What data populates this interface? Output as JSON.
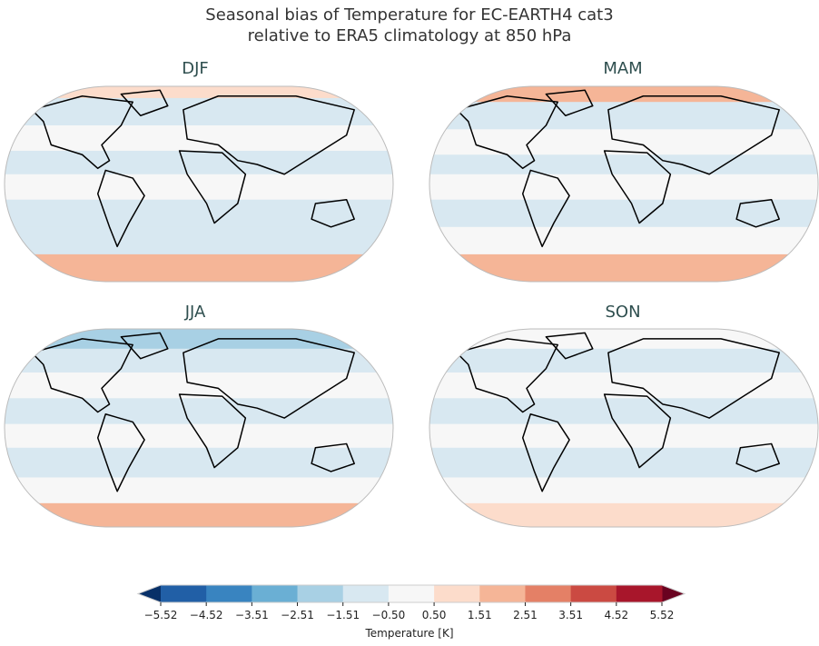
{
  "title": {
    "line1": "Seasonal bias of Temperature for EC-EARTH4 cat3",
    "line2": "relative to ERA5 climatology at 850 hPa"
  },
  "panels": [
    {
      "label": "DJF"
    },
    {
      "label": "MAM"
    },
    {
      "label": "JJA"
    },
    {
      "label": "SON"
    }
  ],
  "colorbar": {
    "label": "Temperature [K]",
    "ticks": [
      "−5.52",
      "−4.52",
      "−3.51",
      "−2.51",
      "−1.51",
      "−0.50",
      "0.50",
      "1.51",
      "2.51",
      "3.51",
      "4.52",
      "5.52"
    ],
    "colors": [
      "#215fa6",
      "#3984c0",
      "#6aafd4",
      "#a8d0e4",
      "#d8e8f1",
      "#f7f7f7",
      "#fcdccb",
      "#f5b597",
      "#e48066",
      "#cb4a42",
      "#a8162b"
    ],
    "under_color": "#073068",
    "over_color": "#690220",
    "extend": "both"
  },
  "colors": {
    "title_text": "#333333",
    "panel_label": "#2f4f4f",
    "coastline": "#000000",
    "map_border": "#bbbbbb"
  }
}
